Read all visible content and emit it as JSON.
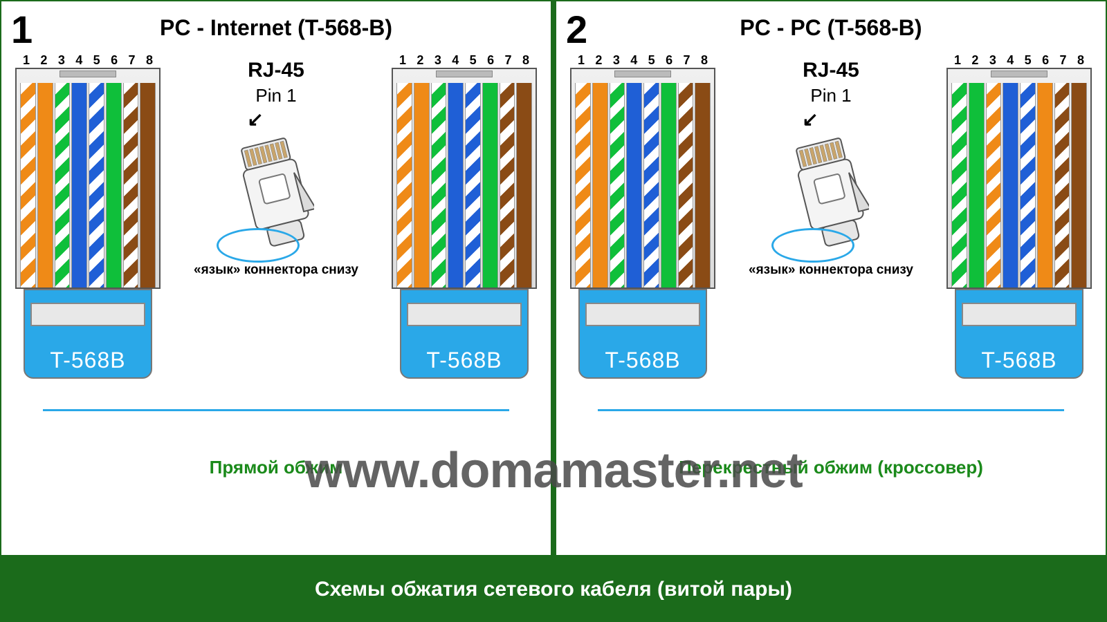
{
  "colors": {
    "border_green": "#1b6b1b",
    "text_green": "#1b8a1b",
    "boot_blue": "#2aa8e8",
    "watermark": "#4a4a4a",
    "wire_orange": "#ef8a17",
    "wire_blue": "#1f5fd6",
    "wire_green": "#0fbf3a",
    "wire_brown": "#8a4b15",
    "wire_white": "#ffffff"
  },
  "pinNumbers": [
    "1",
    "2",
    "3",
    "4",
    "5",
    "6",
    "7",
    "8"
  ],
  "wiring": {
    "t568b": [
      {
        "stripe": "#ef8a17",
        "base": "#ffffff"
      },
      {
        "stripe": null,
        "base": "#ef8a17"
      },
      {
        "stripe": "#0fbf3a",
        "base": "#ffffff"
      },
      {
        "stripe": null,
        "base": "#1f5fd6"
      },
      {
        "stripe": "#1f5fd6",
        "base": "#ffffff"
      },
      {
        "stripe": null,
        "base": "#0fbf3a"
      },
      {
        "stripe": "#8a4b15",
        "base": "#ffffff"
      },
      {
        "stripe": null,
        "base": "#8a4b15"
      }
    ],
    "t568a": [
      {
        "stripe": "#0fbf3a",
        "base": "#ffffff"
      },
      {
        "stripe": null,
        "base": "#0fbf3a"
      },
      {
        "stripe": "#ef8a17",
        "base": "#ffffff"
      },
      {
        "stripe": null,
        "base": "#1f5fd6"
      },
      {
        "stripe": "#1f5fd6",
        "base": "#ffffff"
      },
      {
        "stripe": null,
        "base": "#ef8a17"
      },
      {
        "stripe": "#8a4b15",
        "base": "#ffffff"
      },
      {
        "stripe": null,
        "base": "#8a4b15"
      }
    ]
  },
  "center": {
    "rjLabel": "RJ-45",
    "pin1Label": "Pin 1",
    "clipNote": "«язык» коннектора снизу"
  },
  "bootLabel": "T-568B",
  "panels": [
    {
      "number": "1",
      "title": "PC - Internet (T-568-B)",
      "subtitle": "Прямой обжим",
      "left": "t568b",
      "right": "t568b"
    },
    {
      "number": "2",
      "title": "PC - PC (T-568-B)",
      "subtitle": "Перекрестный обжим (кроссовер)",
      "left": "t568b",
      "right": "t568a"
    }
  ],
  "watermark": "www.domamaster.net",
  "footer": "Схемы обжатия сетевого кабеля (витой пары)"
}
